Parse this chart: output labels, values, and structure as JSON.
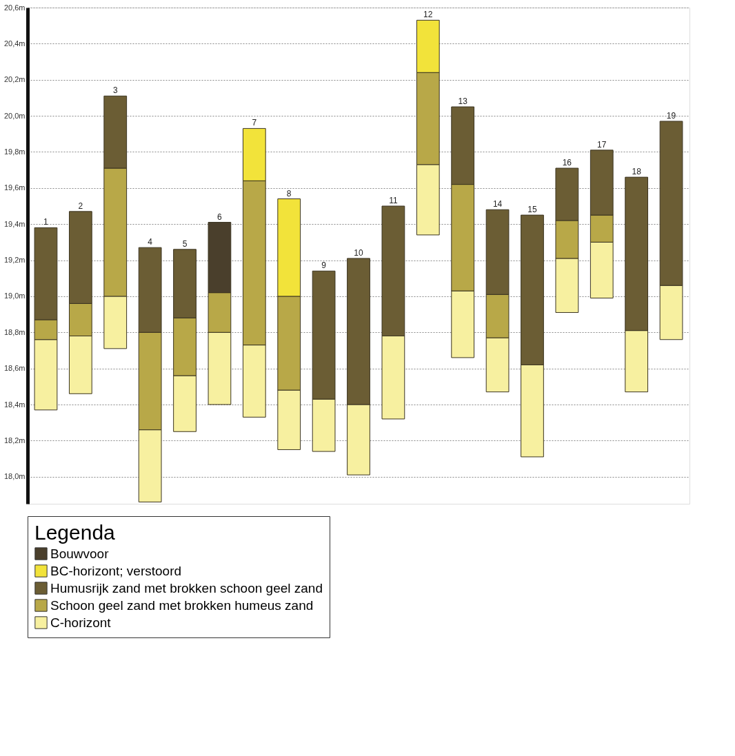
{
  "chart_data": {
    "type": "bar",
    "legend_title": "Legenda",
    "categories": [
      "1",
      "2",
      "3",
      "4",
      "5",
      "6",
      "7",
      "8",
      "9",
      "10",
      "11",
      "12",
      "13",
      "14",
      "15",
      "16",
      "17",
      "18",
      "19"
    ],
    "series": [
      {
        "name": "C-horizont",
        "color": "#f7f0a0",
        "base": [
          18.37,
          18.46,
          18.71,
          17.86,
          18.25,
          18.4,
          18.33,
          18.15,
          18.14,
          18.01,
          18.32,
          19.34,
          18.66,
          18.47,
          18.11,
          18.91,
          18.99,
          18.47,
          18.76
        ],
        "values": [
          0.39,
          0.32,
          0.29,
          0.4,
          0.31,
          0.4,
          0.4,
          0.33,
          0.29,
          0.39,
          0.46,
          0.39,
          0.37,
          0.3,
          0.51,
          0.3,
          0.31,
          0.34,
          0.3
        ]
      },
      {
        "name": "Schoon geel zand met brokken humeus zand",
        "color": "#b8a848",
        "base": [
          18.76,
          18.78,
          19.0,
          18.26,
          18.56,
          18.8,
          18.73,
          18.48,
          null,
          null,
          null,
          19.73,
          19.03,
          18.77,
          null,
          19.21,
          19.3,
          null,
          null
        ],
        "values": [
          0.11,
          0.18,
          0.71,
          0.54,
          0.32,
          0.22,
          0.91,
          0.52,
          null,
          null,
          null,
          0.51,
          0.59,
          0.24,
          null,
          0.21,
          0.15,
          null,
          null
        ]
      },
      {
        "name": "Humusrijk zand met brokken schoon geel zand",
        "color": "#6b5d34",
        "base": [
          18.87,
          18.96,
          19.71,
          18.8,
          18.88,
          null,
          null,
          null,
          18.43,
          18.4,
          18.78,
          null,
          19.62,
          19.01,
          18.62,
          19.42,
          19.45,
          18.81,
          19.06
        ],
        "values": [
          0.51,
          0.51,
          0.4,
          0.47,
          0.38,
          null,
          null,
          null,
          0.71,
          0.81,
          0.72,
          null,
          0.43,
          0.47,
          0.83,
          0.29,
          0.36,
          0.85,
          0.91
        ]
      },
      {
        "name": "BC-horizont; verstoord",
        "color": "#f2e33a",
        "base": [
          null,
          null,
          null,
          null,
          null,
          null,
          19.64,
          19.0,
          null,
          null,
          null,
          20.24,
          null,
          null,
          null,
          null,
          null,
          null,
          null
        ],
        "values": [
          null,
          null,
          null,
          null,
          null,
          null,
          0.29,
          0.54,
          null,
          null,
          null,
          0.29,
          null,
          null,
          null,
          null,
          null,
          null,
          null
        ]
      },
      {
        "name": "Bouwvoor",
        "color": "#4a3f2c",
        "base": [
          null,
          null,
          null,
          null,
          null,
          19.02,
          null,
          null,
          null,
          null,
          null,
          null,
          null,
          null,
          null,
          null,
          null,
          null,
          null
        ],
        "values": [
          null,
          null,
          null,
          null,
          null,
          0.39,
          null,
          null,
          null,
          null,
          null,
          null,
          null,
          null,
          null,
          null,
          null,
          null,
          null
        ]
      }
    ],
    "ylim": [
      17.85,
      20.6
    ],
    "yticks": [
      {
        "value": 18.0,
        "label": "18,0m"
      },
      {
        "value": 18.2,
        "label": "18,2m"
      },
      {
        "value": 18.4,
        "label": "18,4m"
      },
      {
        "value": 18.6,
        "label": "18,6m"
      },
      {
        "value": 18.8,
        "label": "18,8m"
      },
      {
        "value": 19.0,
        "label": "19,0m"
      },
      {
        "value": 19.2,
        "label": "19,2m"
      },
      {
        "value": 19.4,
        "label": "19,4m"
      },
      {
        "value": 19.6,
        "label": "19,6m"
      },
      {
        "value": 19.8,
        "label": "19,8m"
      },
      {
        "value": 20.0,
        "label": "20,0m"
      },
      {
        "value": 20.2,
        "label": "20,2m"
      },
      {
        "value": 20.4,
        "label": "20,4m"
      },
      {
        "value": 20.6,
        "label": "20,6m"
      }
    ],
    "grid": "y",
    "legend": "bottom"
  }
}
